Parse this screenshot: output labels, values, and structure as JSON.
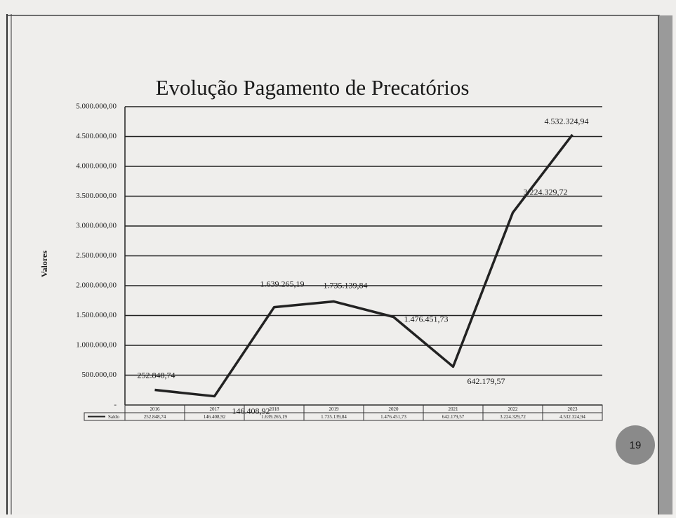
{
  "chart_data": {
    "type": "line",
    "title": "Evolução Pagamento de Precatórios",
    "y_label": "Valores",
    "categories": [
      "2016",
      "2017",
      "2018",
      "2019",
      "2020",
      "2021",
      "2022",
      "2023"
    ],
    "series": [
      {
        "name": "Saldo",
        "color": "#222222",
        "values": [
          252848.74,
          146408.92,
          1639265.19,
          1735139.84,
          1476451.73,
          642179.57,
          3224329.72,
          4532324.94
        ],
        "value_labels": [
          "252.848,74",
          "146.408,92",
          "1.639.265,19",
          "1.735.139,84",
          "1.476.451,73",
          "642.179,57",
          "3.224.329,72",
          "4.532.324,94"
        ]
      }
    ],
    "ylim": [
      0,
      5000000
    ],
    "yticks": [
      {
        "value": 0,
        "label": "-"
      },
      {
        "value": 500000,
        "label": "500.000,00"
      },
      {
        "value": 1000000,
        "label": "1.000.000,00"
      },
      {
        "value": 1500000,
        "label": "1.500.000,00"
      },
      {
        "value": 2000000,
        "label": "2.000.000,00"
      },
      {
        "value": 2500000,
        "label": "2.500.000,00"
      },
      {
        "value": 3000000,
        "label": "3.000.000,00"
      },
      {
        "value": 3500000,
        "label": "3.500.000,00"
      },
      {
        "value": 4000000,
        "label": "4.000.000,00"
      },
      {
        "value": 4500000,
        "label": "4.500.000,00"
      },
      {
        "value": 5000000,
        "label": "5.000.000,00"
      }
    ],
    "grid": true
  },
  "page_number": "19"
}
